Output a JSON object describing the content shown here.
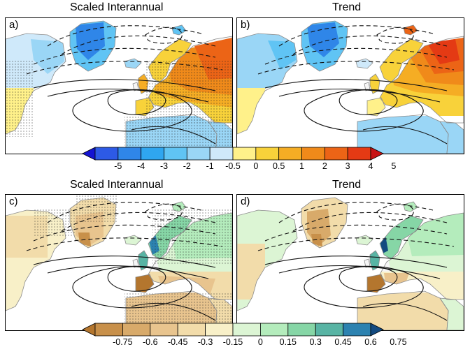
{
  "panels": [
    {
      "letter": "a)",
      "title": "Scaled Interannual",
      "scheme": "t",
      "field": "a"
    },
    {
      "letter": "b)",
      "title": "Trend",
      "scheme": "t",
      "field": "b"
    },
    {
      "letter": "c)",
      "title": "Scaled Interannual",
      "scheme": "p",
      "field": "c"
    },
    {
      "letter": "d)",
      "title": "Trend",
      "scheme": "p",
      "field": "d"
    }
  ],
  "colorbar_top": {
    "labels": [
      "-5",
      "-4",
      "-3",
      "-2",
      "-1",
      "-0.5",
      "0",
      "0.5",
      "1",
      "2",
      "3",
      "4",
      "5"
    ],
    "colors": [
      "#1414d2",
      "#2d5ae6",
      "#2f86e8",
      "#2fa6f0",
      "#60c4f4",
      "#9ad6f6",
      "#cfe9fa",
      "#fff18a",
      "#f8d23a",
      "#f5ad24",
      "#f08a1a",
      "#ec6416",
      "#e43a14",
      "#c81414"
    ]
  },
  "colorbar_bottom": {
    "labels": [
      "-0.75",
      "-0.6",
      "-0.45",
      "-0.3",
      "-0.15",
      "0",
      "0.15",
      "0.3",
      "0.45",
      "0.6",
      "0.75"
    ],
    "colors": [
      "#b4762e",
      "#c8904a",
      "#d8aa6a",
      "#e8c48e",
      "#f2dcaa",
      "#f8f0c8",
      "#dcf5d4",
      "#b4ecbc",
      "#86d6a6",
      "#58b4a4",
      "#2c82b0",
      "#134a80"
    ]
  }
}
